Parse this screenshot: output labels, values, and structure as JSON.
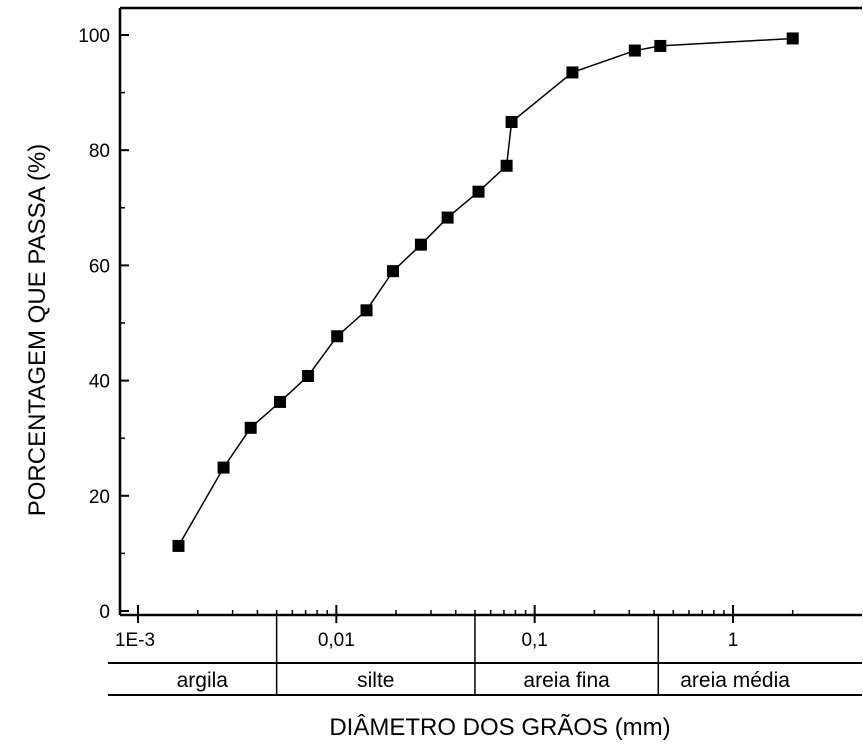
{
  "chart_data": {
    "type": "scatter",
    "xscale": "log",
    "xlim": [
      0.001,
      2.5
    ],
    "ylim": [
      0,
      104
    ],
    "xlabel": "DIÂMETRO DOS GRÃOS (mm)",
    "ylabel": "PORCENTAGEM QUE PASSA (%)",
    "ytick_values": [
      0,
      20,
      40,
      60,
      80,
      100
    ],
    "ytick_labels": [
      "0",
      "20",
      "40",
      "60",
      "80",
      "100"
    ],
    "xtick_values": [
      0.001,
      0.01,
      0.1,
      1
    ],
    "xtick_labels": [
      "1E-3",
      "0,01",
      "0,1",
      "1"
    ],
    "grain_classes": [
      {
        "label": "argila",
        "from": 0.001,
        "to": 0.005
      },
      {
        "label": "silte",
        "from": 0.005,
        "to": 0.05
      },
      {
        "label": "areia fina",
        "from": 0.05,
        "to": 0.42
      },
      {
        "label": "areia média",
        "from": 0.42,
        "to": 2.5
      }
    ],
    "grid": false,
    "series": [
      {
        "color": "#000000",
        "x": [
          0.0016,
          0.0027,
          0.0037,
          0.0052,
          0.0072,
          0.0101,
          0.0142,
          0.0193,
          0.0267,
          0.0364,
          0.0521,
          0.0722,
          0.0765,
          0.155,
          0.32,
          0.43,
          2.0
        ],
        "y": [
          11.3,
          24.9,
          31.8,
          36.3,
          40.8,
          47.7,
          52.2,
          59.0,
          63.6,
          68.3,
          72.8,
          77.3,
          84.9,
          93.5,
          97.3,
          98.1,
          99.4
        ]
      }
    ]
  }
}
